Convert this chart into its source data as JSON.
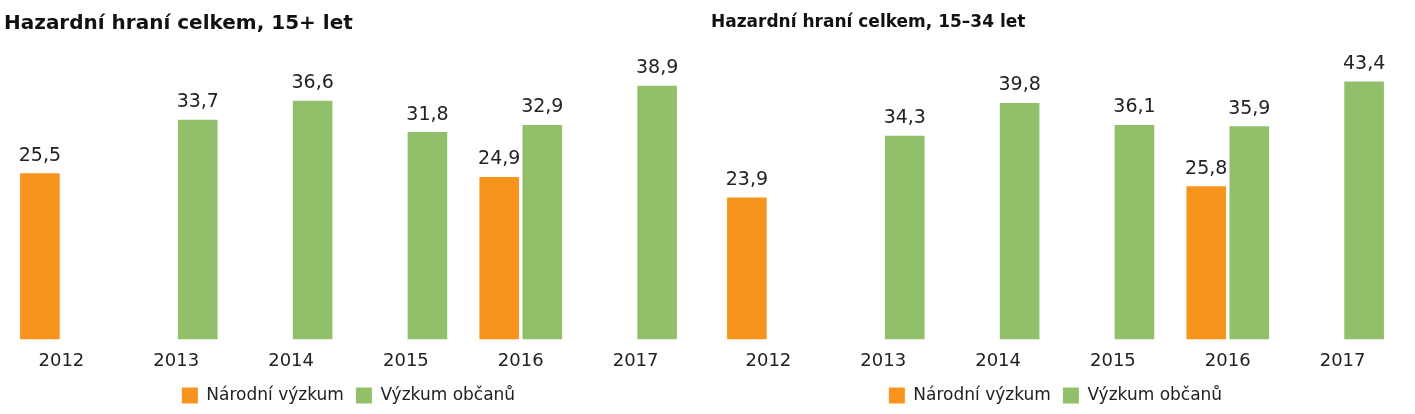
{
  "chart_data": [
    {
      "type": "bar",
      "title": "Hazardní hraní celkem, 15+ let",
      "categories": [
        "2012",
        "2013",
        "2014",
        "2015",
        "2016",
        "2017"
      ],
      "series": [
        {
          "name": "Národní výzkum",
          "color": "#f7941d",
          "values": [
            25.5,
            null,
            null,
            null,
            24.9,
            null
          ],
          "value_labels": [
            "25,5",
            null,
            null,
            null,
            "24,9",
            null
          ]
        },
        {
          "name": "Výzkum občanů",
          "color": "#92bf6a",
          "values": [
            null,
            33.7,
            36.6,
            31.8,
            32.9,
            38.9
          ],
          "value_labels": [
            null,
            "33,7",
            "36,6",
            "31,8",
            "32,9",
            "38,9"
          ]
        }
      ],
      "legend": "bottom",
      "grid": false,
      "tick_labels": "x"
    },
    {
      "type": "bar",
      "title": "Hazardní hraní celkem, 15–34 let",
      "categories": [
        "2012",
        "2013",
        "2014",
        "2015",
        "2016",
        "2017"
      ],
      "series": [
        {
          "name": "Národní výzkum",
          "color": "#f7941d",
          "values": [
            23.9,
            null,
            null,
            null,
            25.8,
            null
          ],
          "value_labels": [
            "23,9",
            null,
            null,
            null,
            "25,8",
            null
          ]
        },
        {
          "name": "Výzkum občanů",
          "color": "#92bf6a",
          "values": [
            null,
            34.3,
            39.8,
            36.1,
            35.9,
            43.4
          ],
          "value_labels": [
            null,
            "34,3",
            "39,8",
            "36,1",
            "35,9",
            "43,4"
          ]
        }
      ],
      "legend": "bottom",
      "grid": false,
      "tick_labels": "x"
    }
  ]
}
